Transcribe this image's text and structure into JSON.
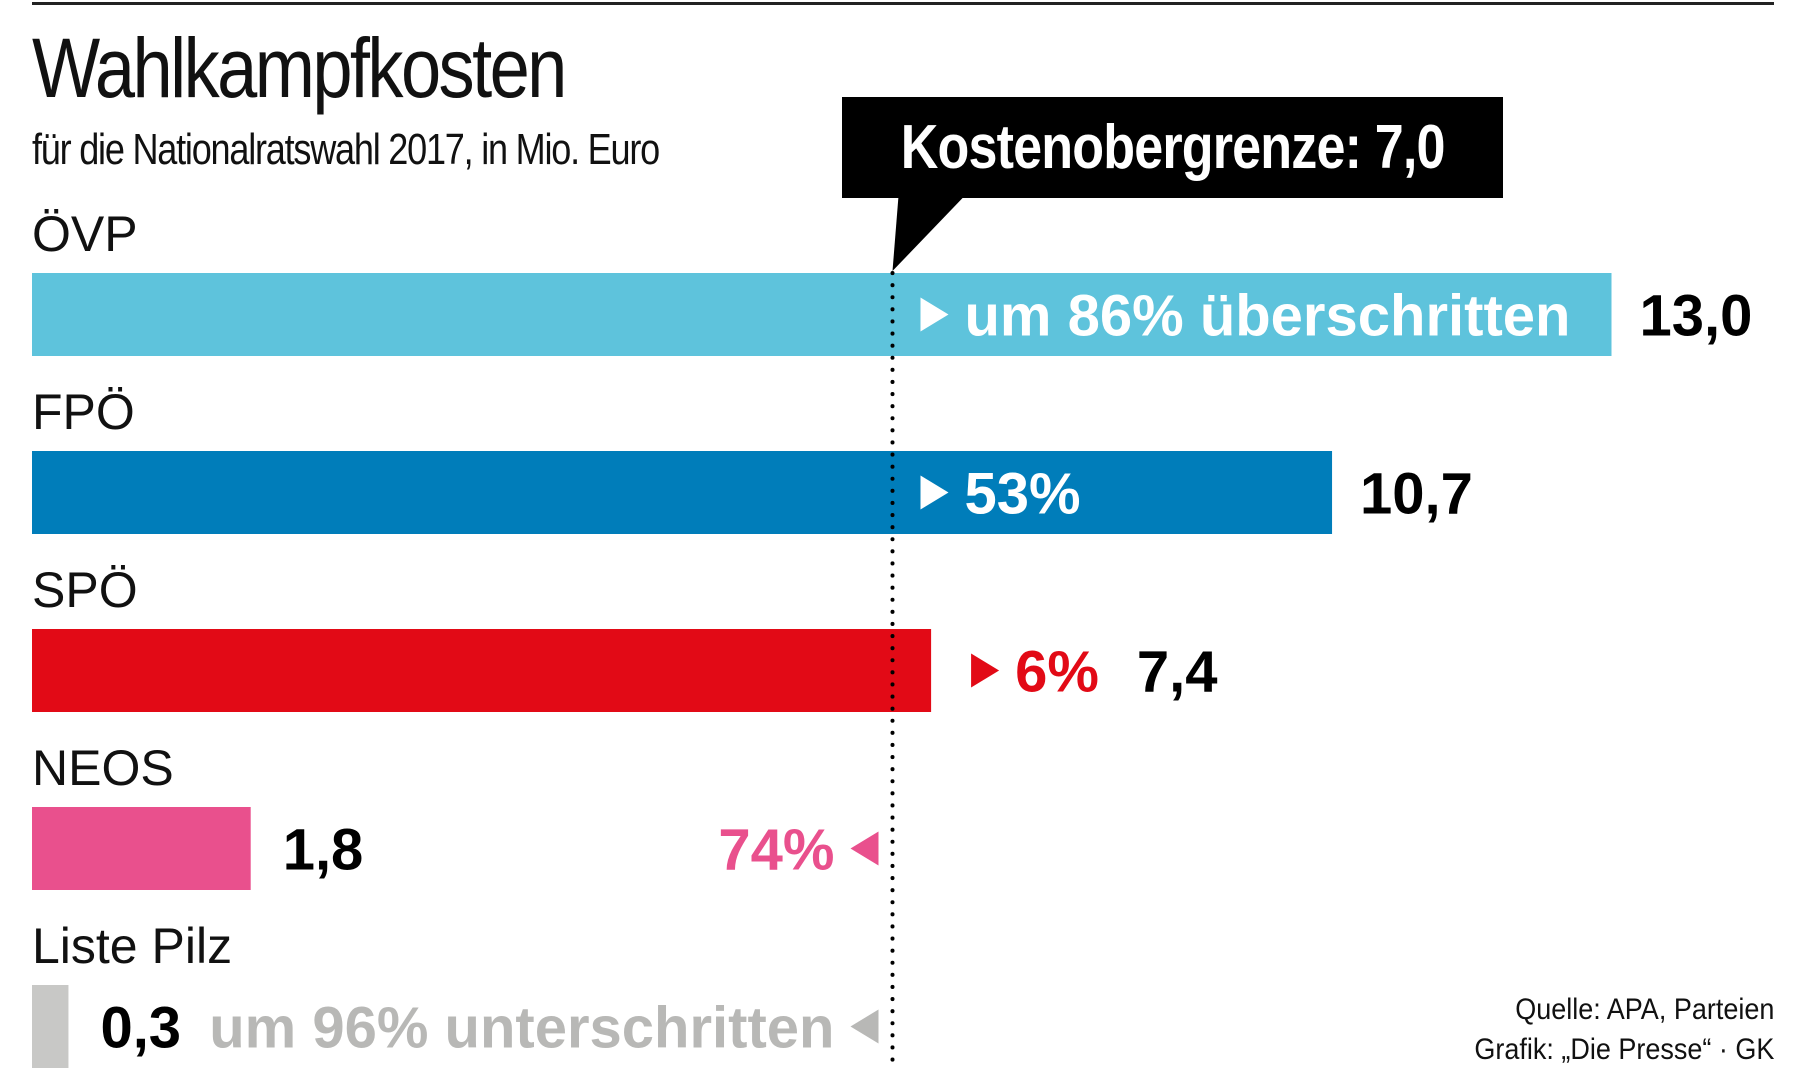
{
  "header": {
    "title": "Wahlkampfkosten",
    "subtitle": "für die Nationalratswahl 2017, in Mio. Euro"
  },
  "callout": {
    "label": "Kostenobergrenze: 7,0"
  },
  "footer": {
    "source": "Quelle: APA, Parteien",
    "credit": "Grafik: „Die Presse“ · GK"
  },
  "chart_data": {
    "type": "bar",
    "orientation": "horizontal",
    "title": "Wahlkampfkosten",
    "subtitle": "für die Nationalratswahl 2017, in Mio. Euro",
    "xlabel": "",
    "ylabel": "",
    "unit": "Mio. Euro",
    "categories": [
      "ÖVP",
      "FPÖ",
      "SPÖ",
      "NEOS",
      "Liste Pilz"
    ],
    "values": [
      13.0,
      10.7,
      7.4,
      1.8,
      0.3
    ],
    "value_labels": [
      "13,0",
      "10,7",
      "7,4",
      "1,8",
      "0,3"
    ],
    "colors": [
      "#5ec3dc",
      "#007dba",
      "#e20a16",
      "#e9508d",
      "#c8c8c6"
    ],
    "deviation_labels": [
      "um 86% überschritten",
      "53%",
      "6%",
      "74%",
      "um 96% unterschritten"
    ],
    "deviation_direction": [
      "over",
      "over",
      "over",
      "under",
      "under"
    ],
    "deviation_colors": [
      "#ffffff",
      "#ffffff",
      "#e20a16",
      "#e9508d",
      "#b8b8b6"
    ],
    "reference_line": {
      "value": 7.0,
      "label": "Kostenobergrenze: 7,0",
      "style": "dotted"
    },
    "xlim": [
      0,
      13.0
    ],
    "grid": false,
    "legend": "none"
  }
}
